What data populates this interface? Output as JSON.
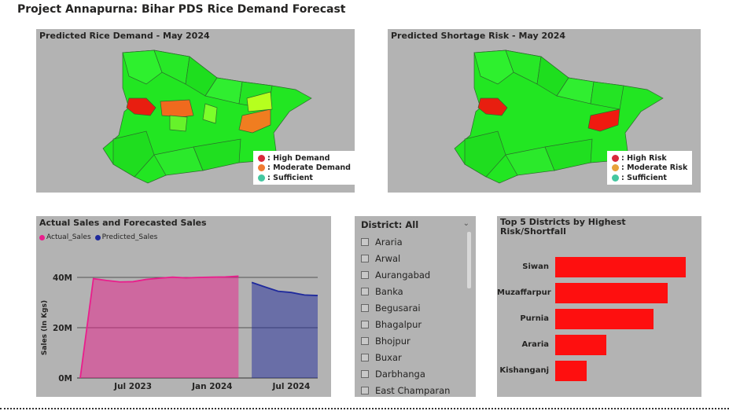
{
  "page_title": "Project Annapurna: Bihar PDS Rice Demand Forecast",
  "demand_map": {
    "title": "Predicted Rice Demand - May 2024",
    "legend": [
      {
        "label": ": High Demand",
        "color": "#d9293b"
      },
      {
        "label": ": Moderate Demand",
        "color": "#f07b32"
      },
      {
        "label": ": Sufficient",
        "color": "#44c7a0"
      }
    ]
  },
  "risk_map": {
    "title": "Predicted Shortage Risk - May 2024",
    "legend": [
      {
        "label": ": High Risk",
        "color": "#d9293b"
      },
      {
        "label": ": Moderate Risk",
        "color": "#e8a23a"
      },
      {
        "label": ": Sufficient",
        "color": "#44c7a0"
      }
    ]
  },
  "sales_chart": {
    "title": "Actual Sales and Forecasted Sales",
    "legend": [
      {
        "label": "Actual_Sales",
        "color": "#e91e8c"
      },
      {
        "label": "Predicted_Sales",
        "color": "#1f2a9c"
      }
    ]
  },
  "district_slicer": {
    "header": "District: All",
    "items": [
      "Araria",
      "Arwal",
      "Aurangabad",
      "Banka",
      "Begusarai",
      "Bhagalpur",
      "Bhojpur",
      "Buxar",
      "Darbhanga",
      "East Champaran"
    ]
  },
  "top5": {
    "title_line1": "Top 5 Districts by Highest",
    "title_line2": "Risk/Shortfall"
  },
  "chart_data": [
    {
      "type": "area",
      "title": "Actual Sales and Forecasted Sales",
      "ylabel": "Sales (In Kgs)",
      "xlabel": "",
      "ylim": [
        0,
        40000000
      ],
      "y_ticks": [
        "0M",
        "20M",
        "40M"
      ],
      "x_ticks": [
        "Jul 2023",
        "Jan 2024",
        "Jul 2024"
      ],
      "series": [
        {
          "name": "Actual_Sales",
          "color": "#e91e8c",
          "x": [
            "2023-03",
            "2023-04",
            "2023-05",
            "2023-06",
            "2023-07",
            "2023-08",
            "2023-09",
            "2023-10",
            "2023-11",
            "2023-12",
            "2024-01",
            "2024-02",
            "2024-03"
          ],
          "values": [
            0,
            39500000,
            38800000,
            38200000,
            38300000,
            39200000,
            39700000,
            40100000,
            39800000,
            40000000,
            40100000,
            40200000,
            40500000
          ]
        },
        {
          "name": "Predicted_Sales",
          "color": "#1f2a9c",
          "x": [
            "2024-04",
            "2024-05",
            "2024-06",
            "2024-07",
            "2024-08",
            "2024-09"
          ],
          "values": [
            38000000,
            36200000,
            34500000,
            34000000,
            33000000,
            32800000
          ]
        }
      ]
    },
    {
      "type": "bar",
      "title": "Top 5 Districts by Highest Risk/Shortfall",
      "orientation": "horizontal",
      "categories": [
        "Siwan",
        "Muzaffarpur",
        "Purnia",
        "Araria",
        "Kishanganj"
      ],
      "values": [
        100,
        86,
        75,
        39,
        24
      ],
      "color": "#fe0f0f"
    }
  ]
}
